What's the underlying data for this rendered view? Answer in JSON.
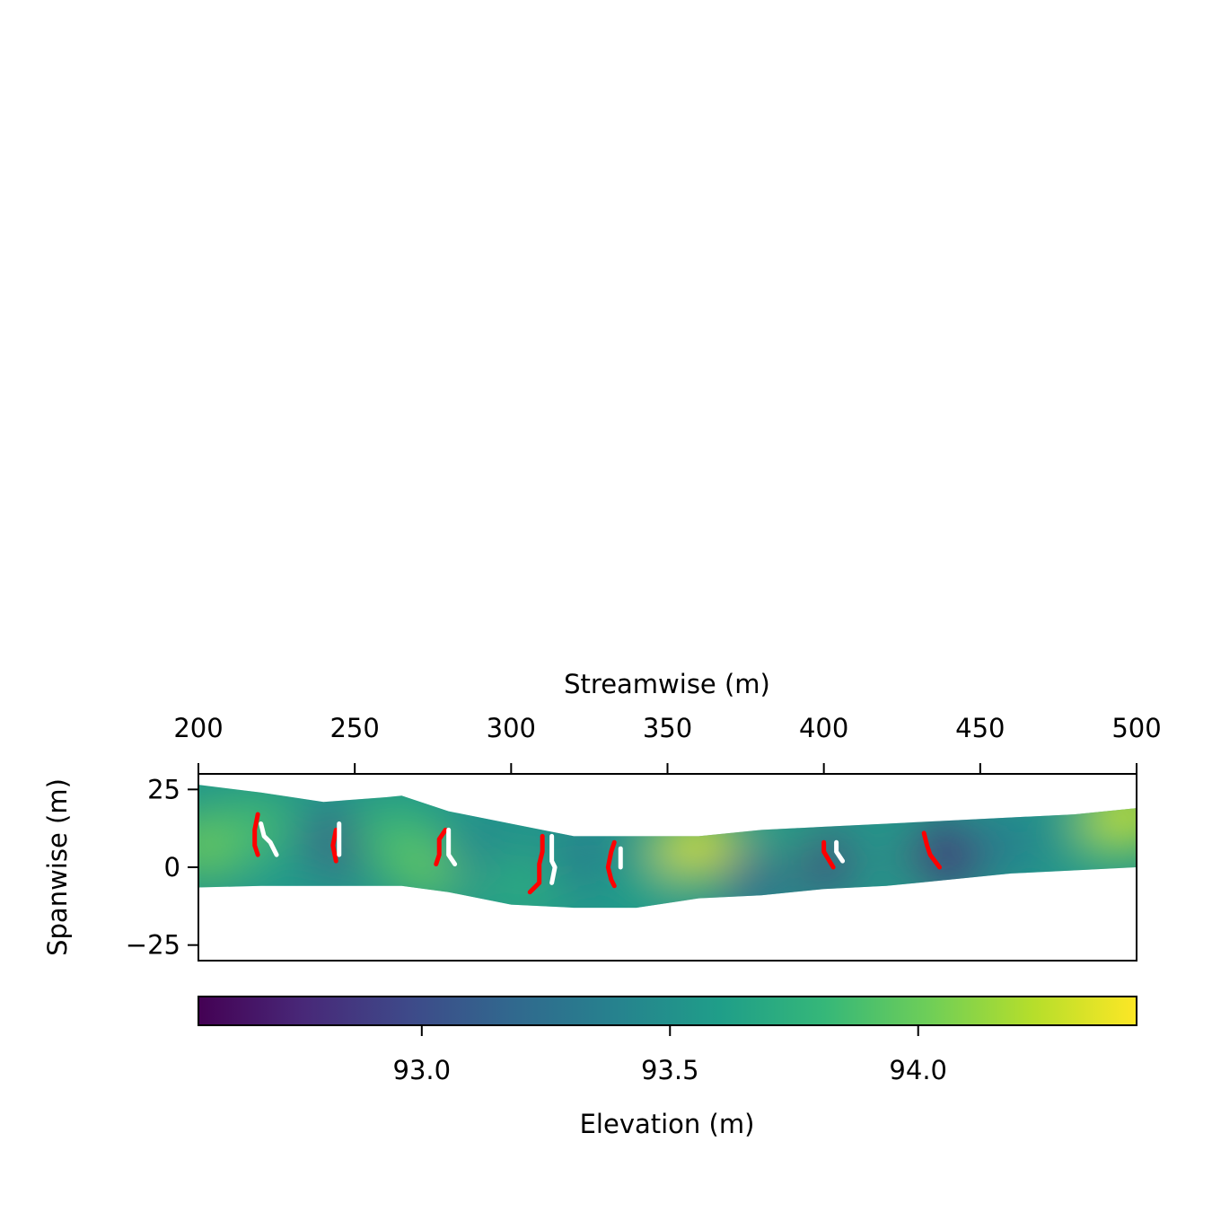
{
  "chart_data": {
    "type": "heatmap",
    "xlabel": "Streamwise (m)",
    "ylabel": "Spanwise (m)",
    "xlim": [
      200,
      500
    ],
    "ylim": [
      -30,
      30
    ],
    "x_ticks": [
      200,
      250,
      300,
      350,
      400,
      450,
      500
    ],
    "x_tick_labels": [
      "200",
      "250",
      "300",
      "350",
      "400",
      "450",
      "500"
    ],
    "y_ticks": [
      25,
      0,
      -25
    ],
    "y_tick_labels": [
      "25",
      "0",
      "−25"
    ],
    "x_axis_position": "top",
    "grid": false,
    "colorbar": {
      "label": "Elevation (m)",
      "colormap": "viridis",
      "orientation": "horizontal",
      "range": [
        92.55,
        94.44
      ],
      "ticks": [
        93.0,
        93.5,
        94.0
      ],
      "tick_labels": [
        "93.0",
        "93.5",
        "94.0"
      ],
      "colors": [
        "#440154",
        "#482878",
        "#3e4989",
        "#31688e",
        "#26828e",
        "#1f9e89",
        "#35b779",
        "#6ece58",
        "#b5de2b",
        "#fde725"
      ]
    },
    "channel": {
      "x": [
        200,
        220,
        240,
        260,
        265,
        280,
        300,
        320,
        340,
        360,
        380,
        400,
        420,
        440,
        460,
        480,
        500
      ],
      "upper": [
        26.5,
        24,
        21,
        22.5,
        23,
        18,
        14,
        10,
        10,
        10,
        12,
        13,
        14,
        15,
        16,
        17,
        19
      ],
      "lower": [
        -6.5,
        -6,
        -6,
        -6,
        -6,
        -8,
        -12,
        -13,
        -13,
        -10,
        -9,
        -7,
        -6,
        -4,
        -2,
        -1,
        0
      ]
    },
    "elevation_features": [
      {
        "x": 203,
        "y": 7,
        "value": 94.05
      },
      {
        "x": 218,
        "y": 12,
        "value": 93.9
      },
      {
        "x": 232,
        "y": 2,
        "value": 93.6
      },
      {
        "x": 247,
        "y": 8,
        "value": 92.95
      },
      {
        "x": 262,
        "y": 10,
        "value": 93.85
      },
      {
        "x": 275,
        "y": 0,
        "value": 94.0
      },
      {
        "x": 292,
        "y": 4,
        "value": 93.4
      },
      {
        "x": 305,
        "y": -5,
        "value": 93.75
      },
      {
        "x": 325,
        "y": 2,
        "value": 93.3
      },
      {
        "x": 340,
        "y": -6,
        "value": 93.6
      },
      {
        "x": 350,
        "y": 2,
        "value": 93.65
      },
      {
        "x": 360,
        "y": 7,
        "value": 94.35
      },
      {
        "x": 380,
        "y": -3,
        "value": 93.1
      },
      {
        "x": 395,
        "y": 5,
        "value": 93.7
      },
      {
        "x": 405,
        "y": 2,
        "value": 92.8
      },
      {
        "x": 420,
        "y": 3,
        "value": 93.55
      },
      {
        "x": 440,
        "y": 4,
        "value": 92.75
      },
      {
        "x": 460,
        "y": 8,
        "value": 93.35
      },
      {
        "x": 480,
        "y": 10,
        "value": 93.5
      },
      {
        "x": 493,
        "y": 13,
        "value": 94.0
      },
      {
        "x": 498,
        "y": 18,
        "value": 94.3
      }
    ],
    "red_lines": [
      [
        [
          219,
          17
        ],
        [
          218,
          12
        ],
        [
          218,
          7
        ],
        [
          219,
          4
        ]
      ],
      [
        [
          244,
          12
        ],
        [
          243,
          7
        ],
        [
          244,
          2
        ]
      ],
      [
        [
          279,
          12
        ],
        [
          277,
          9
        ],
        [
          277,
          4
        ],
        [
          276,
          1
        ]
      ],
      [
        [
          310,
          10
        ],
        [
          310,
          5
        ],
        [
          309,
          1
        ],
        [
          309,
          -5
        ],
        [
          306,
          -8
        ]
      ],
      [
        [
          333,
          8
        ],
        [
          332,
          5
        ],
        [
          331,
          0
        ],
        [
          332,
          -4
        ],
        [
          333,
          -6
        ]
      ],
      [
        [
          400,
          8
        ],
        [
          400,
          5
        ],
        [
          403,
          0
        ]
      ],
      [
        [
          432,
          11
        ],
        [
          433,
          7
        ],
        [
          434,
          4
        ],
        [
          437,
          0
        ]
      ]
    ],
    "white_lines": [
      [
        [
          220,
          14
        ],
        [
          221,
          10
        ],
        [
          223,
          8
        ],
        [
          225,
          4
        ]
      ],
      [
        [
          245,
          14
        ],
        [
          245,
          4
        ]
      ],
      [
        [
          280,
          12
        ],
        [
          280,
          4
        ],
        [
          282,
          1
        ]
      ],
      [
        [
          313,
          10
        ],
        [
          313,
          2
        ],
        [
          314,
          0
        ],
        [
          313,
          -5
        ]
      ],
      [
        [
          335,
          6
        ],
        [
          335,
          0
        ]
      ],
      [
        [
          404,
          8
        ],
        [
          404,
          5
        ],
        [
          406,
          2
        ]
      ]
    ]
  }
}
